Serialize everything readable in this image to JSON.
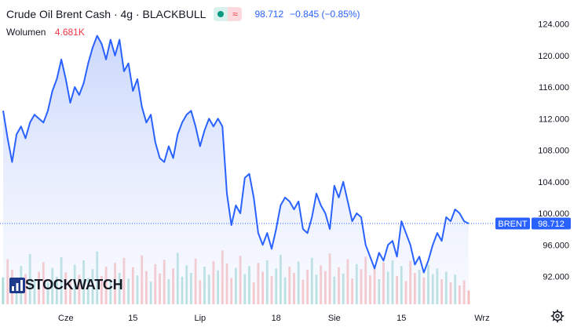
{
  "header": {
    "title": "Crude Oil Brent Cash · 4g · BLACKBULL",
    "last_price": "98.712",
    "change": "−0.845 (−0.85%)",
    "wave_symbol": "≈"
  },
  "volume": {
    "label": "Wolumen",
    "value": "4.681K"
  },
  "price_tag": {
    "symbol": "BRENT",
    "value": "98.712"
  },
  "logo": {
    "text": "STOCKWATCH"
  },
  "colors": {
    "line": "#2962ff",
    "fill_top": "#c5d3fb",
    "vol_up": "#26a69a",
    "vol_down": "#ef5350",
    "accent_green": "#089981"
  },
  "chart_data": {
    "type": "area",
    "ylim": [
      88.5,
      125.5
    ],
    "y_ticks": [
      "124.000",
      "120.000",
      "116.000",
      "112.000",
      "108.000",
      "104.000",
      "100.000",
      "96.000",
      "92.000"
    ],
    "y_tick_values": [
      124,
      120,
      116,
      112,
      108,
      104,
      100,
      96,
      92
    ],
    "x_ticks": [
      {
        "label": "Cze",
        "index": 14
      },
      {
        "label": "15",
        "index": 29
      },
      {
        "label": "Lip",
        "index": 44
      },
      {
        "label": "18",
        "index": 61
      },
      {
        "label": "Sie",
        "index": 74
      },
      {
        "label": "15",
        "index": 89
      },
      {
        "label": "Wrz",
        "index": 107
      }
    ],
    "series": [
      {
        "values": [
          113.0,
          109.5,
          106.5,
          110.0,
          111.0,
          109.5,
          111.5,
          112.5,
          112.0,
          111.5,
          113.0,
          115.5,
          117.0,
          119.5,
          117.0,
          114.0,
          116.0,
          115.0,
          116.5,
          119.0,
          121.0,
          122.5,
          121.5,
          119.5,
          122.0,
          120.0,
          122.0,
          118.0,
          119.0,
          115.5,
          117.0,
          113.5,
          111.5,
          112.5,
          109.0,
          107.0,
          106.5,
          108.5,
          107.0,
          110.0,
          111.5,
          112.5,
          113.0,
          111.0,
          108.5,
          110.5,
          112.0,
          111.0,
          112.0,
          111.0,
          102.5,
          98.5,
          101.0,
          100.0,
          104.5,
          105.0,
          102.0,
          97.5,
          96.0,
          97.5,
          95.5,
          98.0,
          101.0,
          102.0,
          101.5,
          100.5,
          101.5,
          98.0,
          97.5,
          99.5,
          102.5,
          101.0,
          100.0,
          98.0,
          103.5,
          102.0,
          104.0,
          101.5,
          99.0,
          100.0,
          99.5,
          96.0,
          94.5,
          93.0,
          95.0,
          94.0,
          96.0,
          96.5,
          94.5,
          99.0,
          97.5,
          96.0,
          93.5,
          94.5,
          92.5,
          94.0,
          96.0,
          97.5,
          96.5,
          99.5,
          99.0,
          100.5,
          100.0,
          99.0,
          98.712
        ]
      }
    ],
    "volume": [
      0.43,
      0.72,
      0.55,
      0.33,
      0.61,
      0.48,
      0.8,
      0.39,
      0.52,
      0.67,
      0.35,
      0.58,
      0.44,
      0.75,
      0.51,
      0.38,
      0.63,
      0.47,
      0.7,
      0.42,
      0.56,
      0.84,
      0.45,
      0.6,
      0.37,
      0.66,
      0.5,
      0.74,
      0.41,
      0.59,
      0.46,
      0.78,
      0.53,
      0.36,
      0.64,
      0.49,
      0.71,
      0.4,
      0.57,
      0.82,
      0.44,
      0.62,
      0.5,
      0.73,
      0.38,
      0.6,
      0.47,
      0.69,
      0.54,
      0.86,
      0.65,
      0.42,
      0.58,
      0.77,
      0.48,
      0.61,
      0.35,
      0.66,
      0.52,
      0.7,
      0.45,
      0.57,
      0.79,
      0.43,
      0.6,
      0.5,
      0.68,
      0.39,
      0.55,
      0.74,
      0.47,
      0.62,
      0.53,
      0.81,
      0.44,
      0.59,
      0.49,
      0.72,
      0.41,
      0.64,
      0.56,
      0.76,
      0.46,
      0.58,
      0.4,
      0.67,
      0.52,
      0.7,
      0.45,
      0.61,
      0.37,
      0.69,
      0.5,
      0.55,
      0.43,
      0.63,
      0.48,
      0.57,
      0.4,
      0.52,
      0.35,
      0.47,
      0.3,
      0.38,
      0.22
    ]
  }
}
